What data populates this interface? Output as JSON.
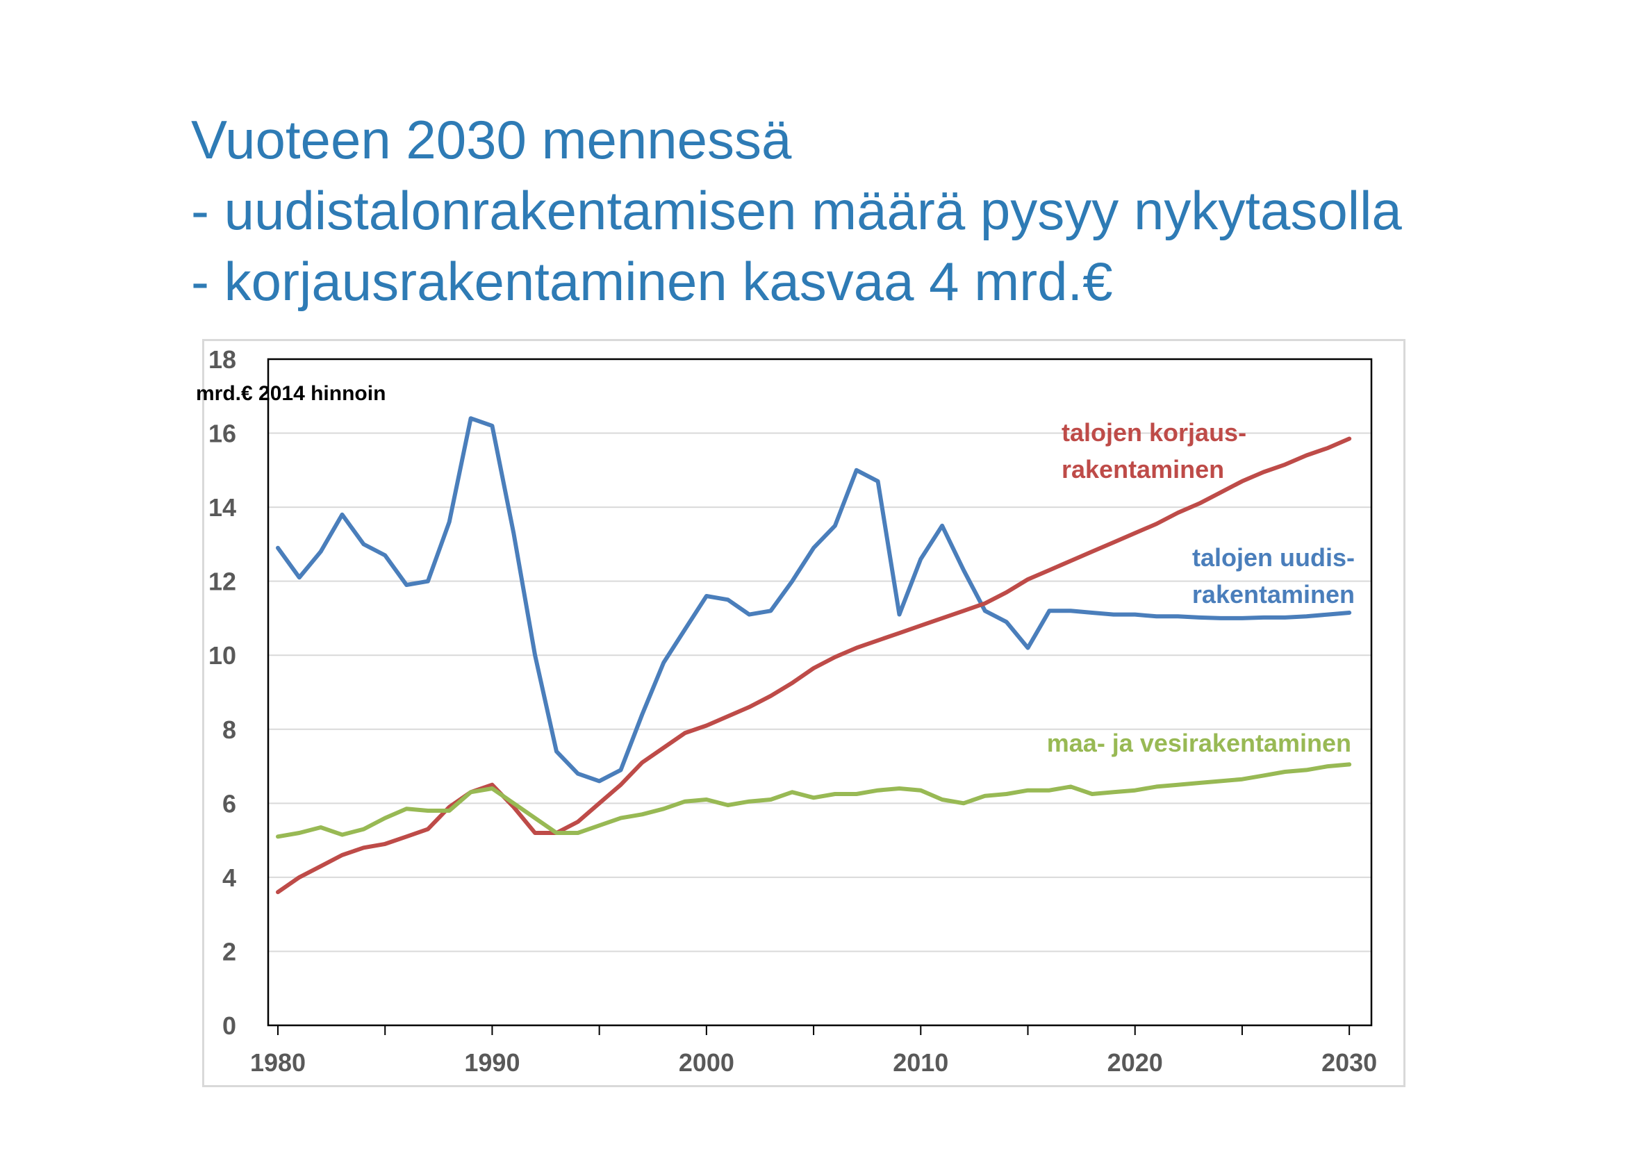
{
  "title": {
    "line1": "Vuoteen 2030 mennessä",
    "line2": "- uudistalonrakentamisen määrä pysyy nykytasolla",
    "line3": "- korjausrakentaminen kasvaa 4 mrd.€"
  },
  "chart_data": {
    "type": "line",
    "ylabel": "mrd.€ 2014 hinnoin",
    "ylim": [
      0,
      18
    ],
    "xlim": [
      1980,
      2031
    ],
    "y_ticks": [
      "0",
      "2",
      "4",
      "6",
      "8",
      "10",
      "12",
      "14",
      "16",
      "18"
    ],
    "x_ticks": [
      "1980",
      "1990",
      "2000",
      "2010",
      "2020",
      "2030"
    ],
    "grid": "horizontal",
    "x": [
      1980,
      1981,
      1982,
      1983,
      1984,
      1985,
      1986,
      1987,
      1988,
      1989,
      1990,
      1991,
      1992,
      1993,
      1994,
      1995,
      1996,
      1997,
      1998,
      1999,
      2000,
      2001,
      2002,
      2003,
      2004,
      2005,
      2006,
      2007,
      2008,
      2009,
      2010,
      2011,
      2012,
      2013,
      2014,
      2015,
      2016,
      2017,
      2018,
      2019,
      2020,
      2021,
      2022,
      2023,
      2024,
      2025,
      2026,
      2027,
      2028,
      2029,
      2030
    ],
    "series": [
      {
        "name": "talojen uudis-rakentaminen",
        "label_lines": [
          "talojen uudis-",
          "rakentaminen"
        ],
        "color": "#4a7ebb",
        "values": [
          12.9,
          12.1,
          12.8,
          13.8,
          13.0,
          12.7,
          11.9,
          12.0,
          13.6,
          16.4,
          16.2,
          13.3,
          10.0,
          7.4,
          6.8,
          6.6,
          6.9,
          8.4,
          9.8,
          10.7,
          11.6,
          11.5,
          11.1,
          11.2,
          12.0,
          12.9,
          13.5,
          15.0,
          14.7,
          11.1,
          12.6,
          13.5,
          12.3,
          11.2,
          10.9,
          10.2,
          11.2,
          11.2,
          11.15,
          11.1,
          11.1,
          11.05,
          11.05,
          11.02,
          11.0,
          11.0,
          11.02,
          11.02,
          11.05,
          11.1,
          11.15
        ]
      },
      {
        "name": "talojen korjaus-rakentaminen",
        "label_lines": [
          "talojen korjaus-",
          "rakentaminen"
        ],
        "color": "#be4b48",
        "values": [
          3.6,
          4.0,
          4.3,
          4.6,
          4.8,
          4.9,
          5.1,
          5.3,
          5.9,
          6.3,
          6.5,
          5.9,
          5.2,
          5.2,
          5.5,
          6.0,
          6.5,
          7.1,
          7.5,
          7.9,
          8.1,
          8.35,
          8.6,
          8.9,
          9.25,
          9.65,
          9.95,
          10.2,
          10.4,
          10.6,
          10.8,
          11.0,
          11.2,
          11.4,
          11.7,
          12.05,
          12.3,
          12.55,
          12.8,
          13.05,
          13.3,
          13.55,
          13.85,
          14.1,
          14.4,
          14.7,
          14.95,
          15.15,
          15.4,
          15.6,
          15.85
        ]
      },
      {
        "name": "maa- ja vesirakentaminen",
        "label_lines": [
          "maa- ja vesirakentaminen"
        ],
        "color": "#98b954",
        "values": [
          5.1,
          5.2,
          5.35,
          5.15,
          5.3,
          5.6,
          5.85,
          5.8,
          5.8,
          6.3,
          6.4,
          6.0,
          5.6,
          5.2,
          5.2,
          5.4,
          5.6,
          5.7,
          5.85,
          6.05,
          6.1,
          5.95,
          6.05,
          6.1,
          6.3,
          6.15,
          6.25,
          6.25,
          6.35,
          6.4,
          6.35,
          6.1,
          6.0,
          6.2,
          6.25,
          6.35,
          6.35,
          6.45,
          6.25,
          6.3,
          6.35,
          6.45,
          6.5,
          6.55,
          6.6,
          6.65,
          6.75,
          6.85,
          6.9,
          7.0,
          7.05
        ]
      }
    ]
  }
}
